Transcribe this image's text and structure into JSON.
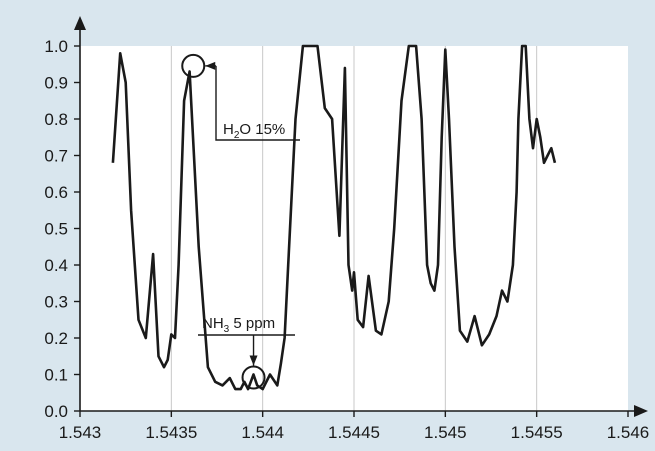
{
  "chart_data": {
    "type": "line",
    "title": "",
    "xlabel": "",
    "ylabel": "",
    "xlim": [
      1.543,
      1.546
    ],
    "ylim": [
      0.0,
      1.0
    ],
    "x_ticks": [
      "1.543",
      "1.5435",
      "1.544",
      "1.5445",
      "1.545",
      "1.5455",
      "1.546"
    ],
    "y_ticks": [
      "0.0",
      "0.1",
      "0.2",
      "0.3",
      "0.4",
      "0.5",
      "0.6",
      "0.7",
      "0.8",
      "0.9",
      "1.0"
    ],
    "grid": {
      "vertical": true,
      "horizontal": false
    },
    "colors": {
      "background": "#d9e6ee",
      "plot_area": "#ffffff",
      "line": "#1a1a1a",
      "grid": "#c8c8c8"
    },
    "series": [
      {
        "x": [
          1.54318,
          1.54322,
          1.54325,
          1.54328,
          1.54332,
          1.54336,
          1.5434,
          1.54343,
          1.54346,
          1.54348,
          1.5435,
          1.54352,
          1.54354,
          1.54357,
          1.5436,
          1.54365,
          1.5437,
          1.54374,
          1.54378,
          1.54382,
          1.54385,
          1.54388,
          1.5439,
          1.54392,
          1.54395,
          1.54397,
          1.544,
          1.54404,
          1.54408,
          1.5441,
          1.54412,
          1.54414,
          1.54418,
          1.54422,
          1.54426,
          1.5443,
          1.54434,
          1.54438,
          1.54442,
          1.54445,
          1.54447,
          1.54449,
          1.5445,
          1.54452,
          1.54455,
          1.54458,
          1.54462,
          1.54465,
          1.54469,
          1.54472,
          1.54476,
          1.5448,
          1.54484,
          1.54487,
          1.5449,
          1.54492,
          1.54494,
          1.54496,
          1.54498,
          1.545,
          1.54502,
          1.54505,
          1.54508,
          1.54512,
          1.54516,
          1.5452,
          1.54524,
          1.54528,
          1.54531,
          1.54534,
          1.54537,
          1.54539,
          1.5454,
          1.54542,
          1.54544,
          1.54546,
          1.54548,
          1.5455,
          1.54552,
          1.54554,
          1.54556,
          1.54558,
          1.5456
        ],
        "y": [
          0.68,
          0.98,
          0.9,
          0.55,
          0.25,
          0.2,
          0.43,
          0.15,
          0.12,
          0.14,
          0.21,
          0.2,
          0.4,
          0.85,
          0.93,
          0.45,
          0.12,
          0.08,
          0.07,
          0.09,
          0.06,
          0.06,
          0.08,
          0.06,
          0.1,
          0.07,
          0.06,
          0.1,
          0.07,
          0.13,
          0.2,
          0.4,
          0.8,
          1.0,
          1.0,
          1.0,
          0.83,
          0.8,
          0.48,
          0.94,
          0.4,
          0.33,
          0.38,
          0.25,
          0.23,
          0.37,
          0.22,
          0.21,
          0.3,
          0.5,
          0.85,
          1.0,
          1.0,
          0.8,
          0.4,
          0.35,
          0.33,
          0.4,
          0.75,
          0.99,
          0.8,
          0.45,
          0.22,
          0.19,
          0.26,
          0.18,
          0.21,
          0.26,
          0.33,
          0.3,
          0.4,
          0.6,
          0.8,
          1.0,
          1.0,
          0.8,
          0.72,
          0.8,
          0.75,
          0.68,
          0.7,
          0.72,
          0.68
        ]
      }
    ],
    "annotations": [
      {
        "label": "H",
        "sub": "2",
        "rest": "O 15%",
        "x": 1.54362,
        "y": 0.94
      },
      {
        "label": "NH",
        "sub": "3",
        "rest": " 5 ppm",
        "x": 1.54395,
        "y": 0.1
      }
    ]
  }
}
